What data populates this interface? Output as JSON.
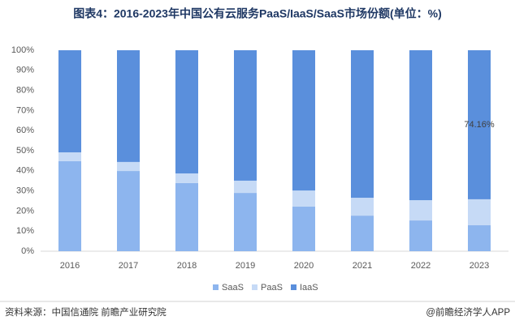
{
  "chart_data": {
    "type": "stacked_bar",
    "title": "图表4：2016-2023年中国公有云服务PaaS/IaaS/SaaS市场份额(单位：%)",
    "categories": [
      "2016",
      "2017",
      "2018",
      "2019",
      "2020",
      "2021",
      "2022",
      "2023"
    ],
    "series": [
      {
        "name": "SaaS",
        "color": "#8db5ee",
        "values": [
          44.8,
          39.9,
          33.9,
          29.0,
          22.2,
          17.7,
          15.3,
          13.0
        ]
      },
      {
        "name": "PaaS",
        "color": "#c6daf6",
        "values": [
          4.4,
          4.5,
          4.8,
          6.1,
          8.0,
          8.9,
          10.1,
          12.84
        ]
      },
      {
        "name": "IaaS",
        "color": "#5a8fdc",
        "values": [
          50.8,
          55.6,
          61.3,
          64.9,
          69.8,
          73.4,
          74.6,
          74.16
        ],
        "value_labels": [
          null,
          null,
          null,
          null,
          null,
          null,
          null,
          "74.16%"
        ]
      }
    ],
    "ylim": [
      0,
      100
    ],
    "yticks": [
      {
        "value": 0,
        "label": "0%"
      },
      {
        "value": 10,
        "label": "10%"
      },
      {
        "value": 20,
        "label": "20%"
      },
      {
        "value": 30,
        "label": "30%"
      },
      {
        "value": 40,
        "label": "40%"
      },
      {
        "value": 50,
        "label": "50%"
      },
      {
        "value": 60,
        "label": "60%"
      },
      {
        "value": 70,
        "label": "70%"
      },
      {
        "value": 80,
        "label": "80%"
      },
      {
        "value": 90,
        "label": "90%"
      },
      {
        "value": 100,
        "label": "100%"
      }
    ],
    "source": "资料来源：中国信通院 前瞻产业研究院",
    "credit": "@前瞻经济学人APP"
  }
}
